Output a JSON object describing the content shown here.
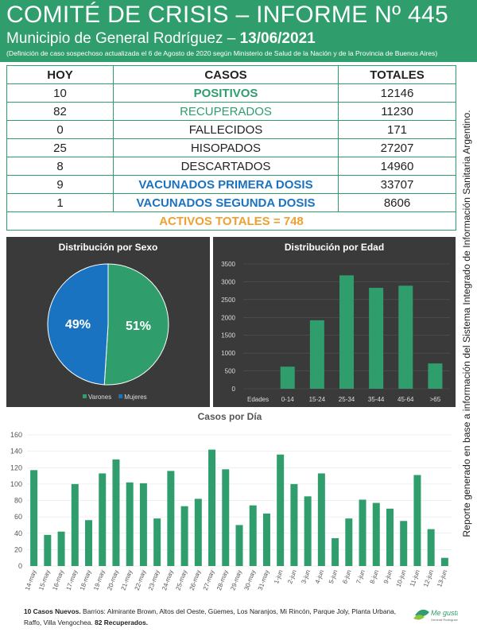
{
  "header": {
    "title": "COMITÉ DE CRISIS – INFORME Nº 445",
    "subtitle": "Municipio de General Rodríguez – ",
    "date": "13/06/2021",
    "note": "(Definición de caso sospechoso actualizada el 6 de Agosto de 2020 según Ministerio de Salud de la Nación y de la Provincia de Buenos Aires)"
  },
  "table": {
    "headers": [
      "HOY",
      "CASOS",
      "TOTALES"
    ],
    "rows": [
      {
        "hoy": "10",
        "caso": "POSITIVOS",
        "total": "12146"
      },
      {
        "hoy": "82",
        "caso": "RECUPERADOS",
        "total": "11230"
      },
      {
        "hoy": "0",
        "caso": "FALLECIDOS",
        "total": "171"
      },
      {
        "hoy": "25",
        "caso": "HISOPADOS",
        "total": "27207"
      },
      {
        "hoy": "8",
        "caso": "DESCARTADOS",
        "total": "14960"
      },
      {
        "hoy": "9",
        "caso": "VACUNADOS PRIMERA DOSIS",
        "total": "33707"
      },
      {
        "hoy": "1",
        "caso": "VACUNADOS SEGUNDA DOSIS",
        "total": "8606"
      }
    ],
    "activos": "ACTIVOS TOTALES = 748"
  },
  "side_text": "Reporte generado en base a información del Sistema Integrado de Información Sanitaria Argentino.",
  "colors": {
    "green": "#2f9e6c",
    "blue": "#1a73c0",
    "orange": "#f0a030",
    "dark": "#3a3a3a"
  },
  "chart_data": [
    {
      "type": "pie",
      "title": "Distribución por Sexo",
      "labels": [
        "Varones",
        "Mujeres"
      ],
      "values": [
        51,
        49
      ],
      "value_labels": [
        "51%",
        "49%"
      ],
      "colors": [
        "#2f9e6c",
        "#1a73c0"
      ],
      "legend": "bottom"
    },
    {
      "type": "bar",
      "title": "Distribución por Edad",
      "xlabel": "Edades",
      "categories": [
        "0-14",
        "15-24",
        "25-34",
        "35-44",
        "45-64",
        ">65"
      ],
      "values": [
        620,
        1920,
        3180,
        2830,
        2890,
        710
      ],
      "ylim": [
        0,
        3500
      ],
      "yticks": [
        "0",
        "500",
        "1000",
        "1500",
        "2000",
        "2500",
        "3000",
        "3500"
      ],
      "color": "#2f9e6c"
    },
    {
      "type": "bar",
      "title": "Casos por Día",
      "categories": [
        "14-may",
        "15-may",
        "16-may",
        "17-may",
        "18-may",
        "19-may",
        "20-may",
        "21-may",
        "22-may",
        "23-may",
        "24-may",
        "25-may",
        "26-may",
        "27-may",
        "28-may",
        "29-may",
        "30-may",
        "31-may",
        "1-jun",
        "2-jun",
        "3-jun",
        "4-jun",
        "5-jun",
        "6-jun",
        "7-jun",
        "8-jun",
        "9-jun",
        "10-jun",
        "11-jun",
        "12-jun",
        "13-jun"
      ],
      "values": [
        117,
        38,
        42,
        100,
        56,
        113,
        130,
        102,
        101,
        58,
        116,
        73,
        82,
        142,
        118,
        50,
        74,
        64,
        136,
        100,
        85,
        113,
        34,
        58,
        81,
        77,
        70,
        55,
        111,
        45,
        10
      ],
      "ylim": [
        0,
        160
      ],
      "yticks": [
        "0",
        "20",
        "40",
        "60",
        "80",
        "100",
        "120",
        "140",
        "160"
      ],
      "color": "#2f9e6c"
    }
  ],
  "footer": {
    "bold1": "10 Casos Nuevos.",
    "text1": " Barrios: Almirante Brown, Altos del Oeste, Güemes, Los Naranjos, Mi Rincón, Parque Joly, Planta Urbana, Raffo, Villa Vengochea. ",
    "bold2": "82 Recuperados."
  },
  "logo": {
    "line1": "Me gusta",
    "line2": "General Rodríguez"
  }
}
